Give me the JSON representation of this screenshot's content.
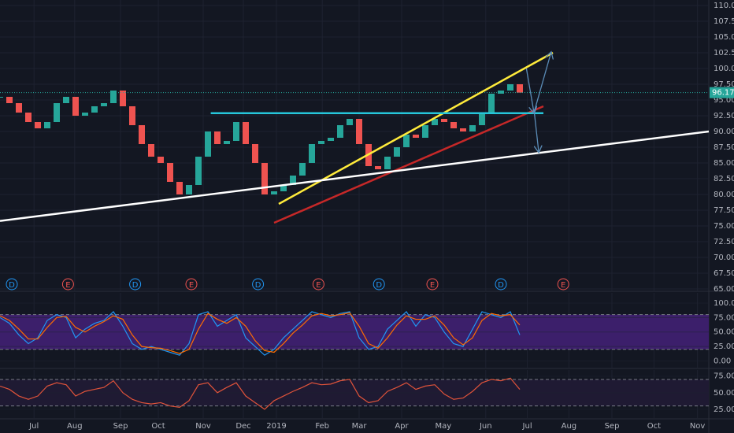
{
  "chart_data": {
    "type": "candlestick",
    "x": [
      0,
      1,
      2,
      3,
      4,
      5,
      6,
      7,
      8,
      9,
      10,
      11,
      12,
      13,
      14,
      15,
      16,
      17,
      18,
      19,
      20,
      21,
      22,
      23,
      24,
      25,
      26,
      27,
      28,
      29,
      30,
      31,
      32,
      33,
      34,
      35,
      36,
      37,
      38,
      39,
      40,
      41,
      42,
      43,
      44,
      45,
      46,
      47,
      48,
      49,
      50,
      51,
      52,
      53,
      54,
      55
    ],
    "close": [
      95.5,
      94.5,
      93,
      91.5,
      90.5,
      91.5,
      94.5,
      95.5,
      92.5,
      93,
      94,
      94.5,
      96.5,
      94,
      91,
      88,
      86,
      85,
      82,
      80,
      81.5,
      86,
      90,
      88,
      88.5,
      91.5,
      88,
      85,
      80,
      80.5,
      81.5,
      83,
      85,
      88,
      88.5,
      89,
      91,
      92,
      88,
      84.5,
      84,
      86,
      87.5,
      89.5,
      89,
      91,
      92,
      91.5,
      90.5,
      90,
      91,
      93,
      96,
      96.5,
      97.5,
      96.17
    ],
    "up_color": "#26a69a",
    "down_color": "#ef5350",
    "xlim": [
      0,
      75
    ],
    "xticks": [
      {
        "value": 3.6,
        "label": "Jul"
      },
      {
        "value": 7.9,
        "label": "Aug"
      },
      {
        "value": 12.75,
        "label": "Sep"
      },
      {
        "value": 16.75,
        "label": "Oct"
      },
      {
        "value": 21.5,
        "label": "Nov"
      },
      {
        "value": 25.75,
        "label": "Dec"
      },
      {
        "value": 29.25,
        "label": "2019"
      },
      {
        "value": 34.1,
        "label": "Feb"
      },
      {
        "value": 38,
        "label": "Mar"
      },
      {
        "value": 42.5,
        "label": "Apr"
      },
      {
        "value": 46.9,
        "label": "May"
      },
      {
        "value": 51.4,
        "label": "Jun"
      },
      {
        "value": 55.8,
        "label": "Jul"
      },
      {
        "value": 60.2,
        "label": "Aug"
      },
      {
        "value": 64.75,
        "label": "Sep"
      },
      {
        "value": 69.2,
        "label": "Oct"
      },
      {
        "value": 73.8,
        "label": "Nov"
      }
    ],
    "ylim": [
      65,
      110
    ],
    "yticks": [
      {
        "value": 110,
        "label": "110.00"
      },
      {
        "value": 107.5,
        "label": "107.50"
      },
      {
        "value": 105,
        "label": "105.00"
      },
      {
        "value": 102.5,
        "label": "102.50"
      },
      {
        "value": 100,
        "label": "100.00"
      },
      {
        "value": 97.5,
        "label": "97.50"
      },
      {
        "value": 95,
        "label": "95.00"
      },
      {
        "value": 92.5,
        "label": "92.50"
      },
      {
        "value": 90,
        "label": "90.00"
      },
      {
        "value": 87.5,
        "label": "87.50"
      },
      {
        "value": 85,
        "label": "85.00"
      },
      {
        "value": 82.5,
        "label": "82.50"
      },
      {
        "value": 80,
        "label": "80.00"
      },
      {
        "value": 77.5,
        "label": "77.50"
      },
      {
        "value": 75,
        "label": "75.00"
      },
      {
        "value": 72.5,
        "label": "72.50"
      },
      {
        "value": 70,
        "label": "70.00"
      },
      {
        "value": 67.5,
        "label": "67.50"
      },
      {
        "value": 65,
        "label": "65.00"
      }
    ],
    "grid": true,
    "trend_lines": [
      {
        "color": "#ffeb3b",
        "x": [
          29.5,
          58.5
        ],
        "y": [
          78.5,
          102.5
        ]
      },
      {
        "color": "#c62828",
        "x": [
          29,
          57.5
        ],
        "y": [
          75.5,
          94
        ]
      },
      {
        "color": "#26c6da",
        "x": [
          22.3,
          57.5
        ],
        "y": [
          92.9,
          92.9
        ]
      },
      {
        "color": "#ffffff",
        "x": [
          0,
          75
        ],
        "y": [
          75.8,
          90
        ]
      }
    ],
    "arrows": [
      {
        "color": "#5b8db8",
        "x": [
          55.7,
          56.5
        ],
        "y": [
          100,
          93
        ]
      },
      {
        "color": "#5b8db8",
        "x": [
          56.5,
          58.3
        ],
        "y": [
          93,
          102.5
        ]
      },
      {
        "color": "#5b8db8",
        "x": [
          56.5,
          57
        ],
        "y": [
          93.5,
          86.8
        ]
      }
    ],
    "events": [
      {
        "x": 1.25,
        "label": "D"
      },
      {
        "x": 7.2,
        "label": "E"
      },
      {
        "x": 14.3,
        "label": "D"
      },
      {
        "x": 20.25,
        "label": "E"
      },
      {
        "x": 27.3,
        "label": "D"
      },
      {
        "x": 33.7,
        "label": "E"
      },
      {
        "x": 40.1,
        "label": "D"
      },
      {
        "x": 45.75,
        "label": "E"
      },
      {
        "x": 53,
        "label": "D"
      },
      {
        "x": 59.6,
        "label": "E"
      }
    ],
    "stoch": {
      "ylim": [
        -2,
        104
      ],
      "yticks": [
        {
          "value": 100,
          "label": "100.00"
        },
        {
          "value": 75,
          "label": "75.00"
        },
        {
          "value": 50,
          "label": "50.00"
        },
        {
          "value": 25,
          "label": "25.00"
        },
        {
          "value": 0,
          "label": "0.00"
        }
      ],
      "band": [
        20,
        80
      ],
      "band_color": "#3c1f6b",
      "series": [
        {
          "color": "#2196f3",
          "values": [
            75,
            65,
            45,
            30,
            40,
            70,
            80,
            75,
            40,
            55,
            65,
            70,
            85,
            60,
            30,
            20,
            25,
            20,
            15,
            10,
            30,
            80,
            85,
            60,
            70,
            80,
            40,
            25,
            10,
            20,
            40,
            55,
            70,
            85,
            80,
            75,
            82,
            85,
            40,
            20,
            25,
            55,
            70,
            85,
            60,
            80,
            75,
            50,
            30,
            25,
            55,
            85,
            80,
            75,
            85,
            45
          ]
        },
        {
          "color": "#ff6d00",
          "values": [
            78,
            70,
            55,
            38,
            38,
            58,
            75,
            77,
            58,
            50,
            60,
            68,
            78,
            72,
            45,
            25,
            23,
            22,
            18,
            13,
            20,
            55,
            82,
            72,
            65,
            75,
            60,
            35,
            18,
            15,
            30,
            48,
            62,
            78,
            82,
            78,
            80,
            83,
            60,
            30,
            22,
            40,
            62,
            78,
            72,
            72,
            78,
            62,
            40,
            28,
            40,
            70,
            82,
            78,
            80,
            62
          ]
        }
      ]
    },
    "rsi": {
      "ylim": [
        13,
        83
      ],
      "yticks": [
        {
          "value": 75,
          "label": "75.00"
        },
        {
          "value": 50,
          "label": "50.00"
        },
        {
          "value": 25,
          "label": "25.00"
        }
      ],
      "band": [
        30,
        70
      ],
      "band_color": "#1f1a33",
      "color": "#e0533a",
      "values": [
        60,
        55,
        45,
        40,
        45,
        60,
        65,
        62,
        45,
        52,
        55,
        58,
        68,
        50,
        40,
        35,
        33,
        35,
        30,
        28,
        38,
        62,
        65,
        50,
        58,
        65,
        45,
        35,
        25,
        38,
        45,
        52,
        58,
        65,
        62,
        63,
        68,
        70,
        45,
        35,
        38,
        52,
        58,
        65,
        55,
        60,
        62,
        48,
        40,
        42,
        52,
        65,
        70,
        68,
        72,
        55
      ]
    }
  }
}
